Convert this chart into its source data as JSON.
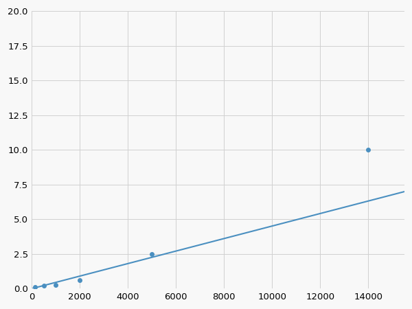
{
  "x": [
    125,
    500,
    1000,
    2000,
    5000,
    14000
  ],
  "y": [
    0.1,
    0.2,
    0.25,
    0.6,
    2.5,
    10.0
  ],
  "line_color": "#4a8fc0",
  "marker_color": "#4a8fc0",
  "marker_style": "o",
  "marker_size": 4,
  "line_width": 1.5,
  "xlim": [
    0,
    15500
  ],
  "ylim": [
    0,
    20
  ],
  "xticks": [
    0,
    2000,
    4000,
    6000,
    8000,
    10000,
    12000,
    14000
  ],
  "yticks": [
    0.0,
    2.5,
    5.0,
    7.5,
    10.0,
    12.5,
    15.0,
    17.5,
    20.0
  ],
  "grid_color": "#d0d0d0",
  "grid_linewidth": 0.7,
  "background_color": "#f8f8f8",
  "tick_fontsize": 9.5,
  "figsize": [
    6.0,
    4.5
  ],
  "dpi": 100
}
